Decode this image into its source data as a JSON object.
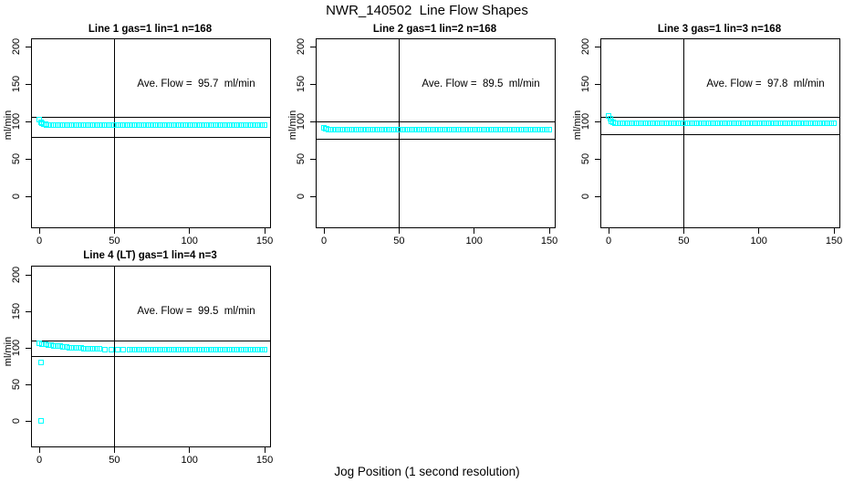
{
  "title": "NWR_140502  Line Flow Shapes",
  "footer": {
    "xlabel": "Jog Position (1 second resolution)"
  },
  "colors": {
    "marker": "#00FFFF",
    "line": "#000000",
    "background": "#FFFFFF"
  },
  "axes": {
    "y_label": "ml/min",
    "y_ticks": [
      200,
      150,
      100,
      50,
      0
    ],
    "x_ticks": [
      0,
      50,
      100,
      150
    ]
  },
  "chart_data": [
    {
      "type": "scatter",
      "title": "Line 1 gas=1 lin=1 n=168",
      "line": 1,
      "gas": 1,
      "lin": 1,
      "n": 168,
      "annotation": "Ave. Flow =  95.7  ml/min",
      "ave_flow_ml_min": 95.7,
      "xlim": [
        0,
        150
      ],
      "ylim": [
        0,
        200
      ],
      "vline_x": 50,
      "hlines": [
        105,
        79
      ],
      "marker": {
        "shape": "open-square",
        "color": "#00FFFF"
      },
      "points_head": [
        [
          0,
          103
        ],
        [
          1,
          99
        ],
        [
          2,
          97
        ],
        [
          3,
          96.2
        ],
        [
          4,
          95.8
        ],
        [
          5,
          95.6
        ]
      ],
      "points_flat": {
        "from": 6,
        "to": 150,
        "step": 2,
        "y": 95.4
      },
      "outliers": []
    },
    {
      "type": "scatter",
      "title": "Line 2 gas=1 lin=2 n=168",
      "line": 2,
      "gas": 1,
      "lin": 2,
      "n": 168,
      "annotation": "Ave. Flow =  89.5  ml/min",
      "ave_flow_ml_min": 89.5,
      "xlim": [
        0,
        150
      ],
      "ylim": [
        0,
        200
      ],
      "vline_x": 50,
      "hlines": [
        99,
        76
      ],
      "marker": {
        "shape": "open-square",
        "color": "#00FFFF"
      },
      "points_head": [
        [
          0,
          91.8
        ],
        [
          1,
          90.2
        ],
        [
          2,
          89.7
        ],
        [
          3,
          89.5
        ],
        [
          4,
          89.4
        ]
      ],
      "points_flat": {
        "from": 6,
        "to": 150,
        "step": 2,
        "y": 89.3
      },
      "outliers": []
    },
    {
      "type": "scatter",
      "title": "Line 3 gas=1 lin=3 n=168",
      "line": 3,
      "gas": 1,
      "lin": 3,
      "n": 168,
      "annotation": "Ave. Flow =  97.8  ml/min",
      "ave_flow_ml_min": 97.8,
      "xlim": [
        0,
        150
      ],
      "ylim": [
        0,
        200
      ],
      "vline_x": 50,
      "hlines": [
        105.5,
        82
      ],
      "marker": {
        "shape": "open-square",
        "color": "#00FFFF"
      },
      "points_head": [
        [
          0,
          107
        ],
        [
          1,
          103.2
        ],
        [
          2,
          100
        ],
        [
          3,
          98.5
        ],
        [
          4,
          97.8
        ],
        [
          5,
          97.4
        ]
      ],
      "points_flat": {
        "from": 6,
        "to": 150,
        "step": 2,
        "y": 97.1
      },
      "outliers": []
    },
    {
      "type": "scatter",
      "title": "Line 4 (LT) gas=1 lin=4 n=3",
      "line": 4,
      "gas": 1,
      "lin": 4,
      "n": 3,
      "annotation": "Ave. Flow =  99.5  ml/min",
      "ave_flow_ml_min": 99.5,
      "xlim": [
        0,
        150
      ],
      "ylim": [
        0,
        200
      ],
      "vline_x": 50,
      "hlines": [
        110,
        88
      ],
      "marker": {
        "shape": "open-square",
        "color": "#00FFFF"
      },
      "points_head": [
        [
          0,
          106.3
        ],
        [
          2,
          105.5
        ],
        [
          4,
          104.8
        ],
        [
          6,
          104.1
        ],
        [
          8,
          103.5
        ],
        [
          10,
          102.9
        ],
        [
          12,
          102.4
        ],
        [
          14,
          101.9
        ],
        [
          16,
          101.4
        ],
        [
          18,
          101
        ],
        [
          20,
          100.6
        ],
        [
          22,
          100.3
        ],
        [
          24,
          100
        ],
        [
          26,
          99.7
        ],
        [
          28,
          99.4
        ],
        [
          30,
          99.2
        ],
        [
          32,
          99
        ],
        [
          34,
          98.8
        ],
        [
          36,
          98.6
        ],
        [
          38,
          98.5
        ],
        [
          40,
          98.3
        ],
        [
          44,
          98.1
        ],
        [
          48,
          97.9
        ],
        [
          52,
          97.8
        ],
        [
          56,
          97.7
        ],
        [
          60,
          97.6
        ]
      ],
      "points_flat": {
        "from": 62,
        "to": 150,
        "step": 2,
        "y": 97.5
      },
      "outliers": [
        [
          1,
          80
        ],
        [
          1,
          0
        ]
      ]
    }
  ]
}
